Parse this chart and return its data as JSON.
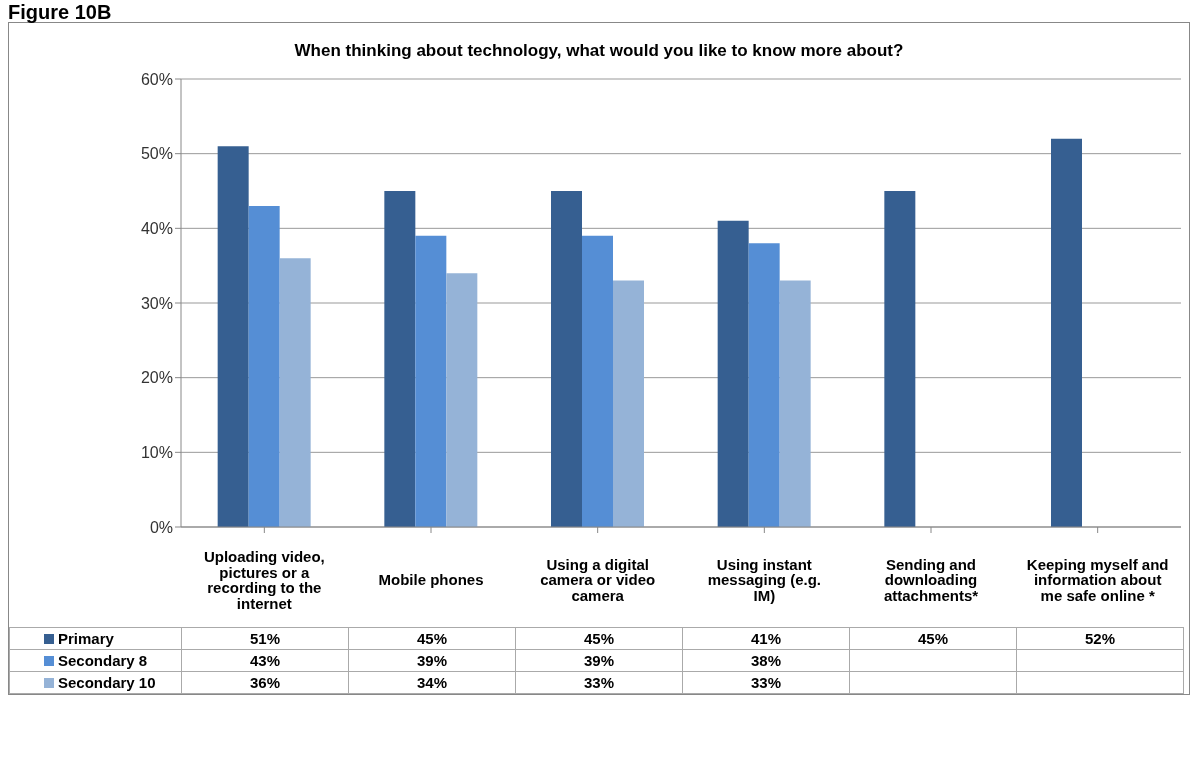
{
  "chart_data": {
    "type": "bar",
    "title": "When thinking about technology, what would you like to know more about?",
    "annotations": [
      "Figure 10B"
    ],
    "categories": [
      "Uploading video, pictures or a recording to the internet",
      "Mobile phones",
      "Using a digital camera or video camera",
      "Using instant messaging (e.g. IM)",
      "Sending and downloading attachments*",
      "Keeping myself and information about me safe online *"
    ],
    "series": [
      {
        "name": "Primary",
        "color": "#365f91",
        "values": [
          51,
          45,
          45,
          41,
          45,
          52
        ],
        "value_labels": [
          "51%",
          "45%",
          "45%",
          "41%",
          "45%",
          "52%"
        ]
      },
      {
        "name": "Secondary 8",
        "color": "#558ed5",
        "values": [
          43,
          39,
          39,
          38,
          null,
          null
        ],
        "value_labels": [
          "43%",
          "39%",
          "39%",
          "38%",
          null,
          null
        ]
      },
      {
        "name": "Secondary 10",
        "color": "#95b3d7",
        "values": [
          36,
          34,
          33,
          33,
          null,
          null
        ],
        "value_labels": [
          "36%",
          "34%",
          "33%",
          "33%",
          null,
          null
        ]
      }
    ],
    "ylim": [
      0,
      60
    ],
    "yticks": [
      {
        "value": 0,
        "label": "0%"
      },
      {
        "value": 10,
        "label": "10%"
      },
      {
        "value": 20,
        "label": "20%"
      },
      {
        "value": 30,
        "label": "30%"
      },
      {
        "value": 40,
        "label": "40%"
      },
      {
        "value": 50,
        "label": "50%"
      },
      {
        "value": 60,
        "label": "60%"
      }
    ],
    "grid": "y",
    "legend": "bottom"
  }
}
